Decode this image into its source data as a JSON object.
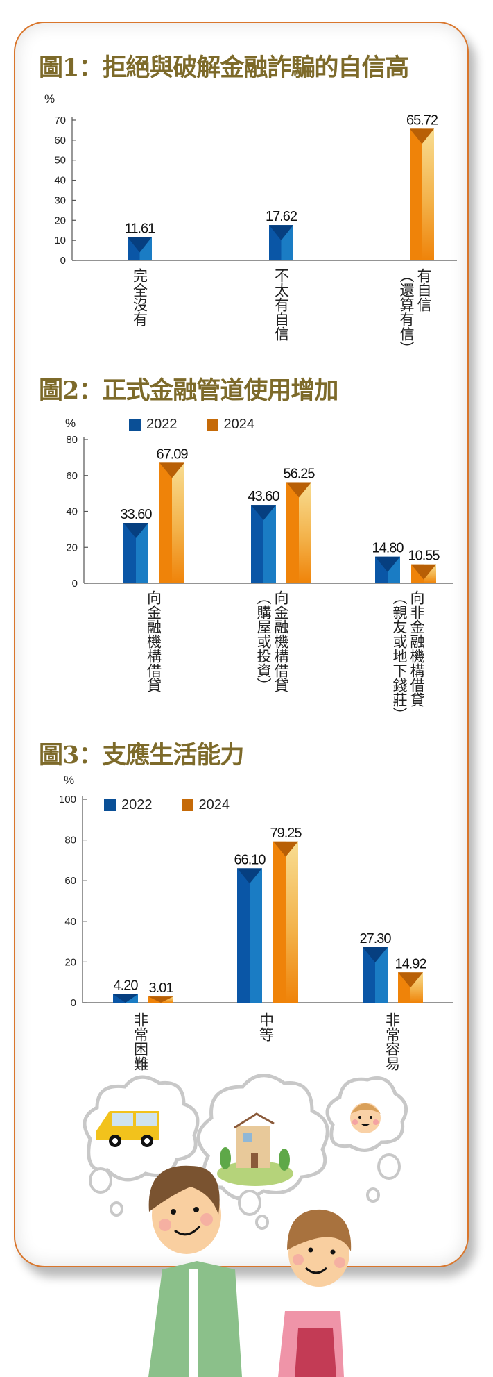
{
  "colors": {
    "frame": "#d9762c",
    "title": "#7d6a2a",
    "blue": "#0a56a6",
    "blue_light": "#1a7cc4",
    "orange": "#ef8309",
    "orange_light": "#f6d58a"
  },
  "chart_data": [
    {
      "type": "bar",
      "title": "圖1：拒絕與破解金融詐騙的自信高",
      "ylabel": "%",
      "ylim": [
        0,
        70
      ],
      "yticks": [
        0,
        10,
        20,
        30,
        40,
        50,
        60,
        70
      ],
      "categories": [
        [
          "完全沒有"
        ],
        [
          "不太有自信"
        ],
        [
          "有自信",
          "（還算有信）"
        ]
      ],
      "values": [
        11.61,
        17.62,
        65.72
      ],
      "value_labels": [
        "11.61",
        "17.62",
        "65.72"
      ],
      "bar_colors": [
        "blue",
        "blue",
        "orange"
      ]
    },
    {
      "type": "bar",
      "title": "圖2：正式金融管道使用增加",
      "ylabel": "%",
      "ylim": [
        0,
        80
      ],
      "yticks": [
        0,
        20,
        40,
        60,
        80
      ],
      "legend_position": "top",
      "categories": [
        [
          "向金融機構借貸"
        ],
        [
          "向金融機構借貸",
          "（購屋或投資）"
        ],
        [
          "向非金融機構借貸",
          "（親友或地下錢莊）"
        ]
      ],
      "series": [
        {
          "name": "2022",
          "color": "blue",
          "values": [
            33.6,
            43.6,
            14.8
          ],
          "value_labels": [
            "33.60",
            "43.60",
            "14.80"
          ]
        },
        {
          "name": "2024",
          "color": "orange",
          "values": [
            67.09,
            56.25,
            10.55
          ],
          "value_labels": [
            "67.09",
            "56.25",
            "10.55"
          ]
        }
      ]
    },
    {
      "type": "bar",
      "title": "圖3：支應生活能力",
      "ylabel": "%",
      "ylim": [
        0,
        100
      ],
      "yticks": [
        0,
        20,
        40,
        60,
        80,
        100
      ],
      "legend_position": "top-left",
      "categories": [
        [
          "非常困難"
        ],
        [
          "中等"
        ],
        [
          "非常容易"
        ]
      ],
      "series": [
        {
          "name": "2022",
          "color": "blue",
          "values": [
            4.2,
            66.1,
            27.3
          ],
          "value_labels": [
            "4.20",
            "66.10",
            "27.30"
          ]
        },
        {
          "name": "2024",
          "color": "orange",
          "values": [
            3.01,
            79.25,
            14.92
          ],
          "value_labels": [
            "3.01",
            "79.25",
            "14.92"
          ]
        }
      ]
    }
  ]
}
